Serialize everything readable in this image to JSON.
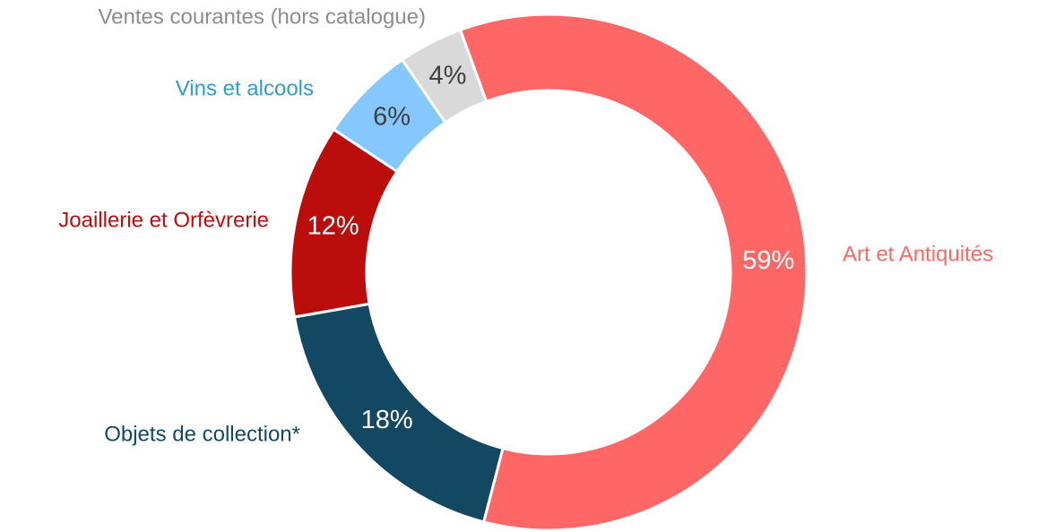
{
  "chart_data": {
    "type": "donut",
    "categories": [
      "Art et Antiquités",
      "Objets de collection*",
      "Joaillerie et Orfèvrerie",
      "Vins et alcools",
      "Ventes courantes (hors catalogue)"
    ],
    "values": [
      59,
      18,
      12,
      6,
      4
    ],
    "value_labels": [
      "59%",
      "18%",
      "12%",
      "6%",
      "4%"
    ],
    "colors": [
      "#ff6666",
      "#124862",
      "#bc0d0d",
      "#85c8ff",
      "#d9d9d9"
    ]
  }
}
